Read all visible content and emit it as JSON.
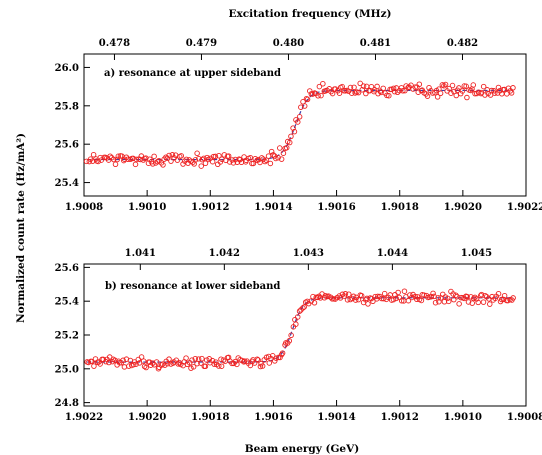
{
  "figure": {
    "top_axis_label": "Excitation frequency (MHz)",
    "y_axis_label": "Normalized count rate (Hz/mA²)",
    "bottom_axis_label": "Beam energy (GeV)"
  },
  "chart_data": [
    {
      "type": "scatter",
      "panel_label": "a) resonance at upper sideband",
      "xlabel": "",
      "x2label": "Excitation frequency (MHz)",
      "ylabel": "Normalized count rate (Hz/mA²)",
      "xlim": [
        1.9008,
        1.9022
      ],
      "x2lim": [
        0.47765,
        0.48273
      ],
      "ylim": [
        25.33,
        26.07
      ],
      "x_ticks": [
        1.9008,
        1.901,
        1.9012,
        1.9014,
        1.9016,
        1.9018,
        1.902,
        1.9022
      ],
      "x_tick_labels": [
        "1.9008",
        "1.9010",
        "1.9012",
        "1.9014",
        "1.9016",
        "1.9018",
        "1.9020",
        "1.9022"
      ],
      "x2_ticks": [
        0.478,
        0.479,
        0.48,
        0.481,
        0.482
      ],
      "x2_tick_labels": [
        "0.478",
        "0.479",
        "0.480",
        "0.481",
        "0.482"
      ],
      "y_ticks": [
        25.4,
        25.6,
        25.8,
        26.0
      ],
      "y_tick_labels": [
        "25.4",
        "25.6",
        "25.8",
        "26.0"
      ],
      "fit": {
        "low": 25.52,
        "high": 25.88,
        "center": 1.90147,
        "width": 2e-05
      },
      "data_range": [
        1.90081,
        1.90216
      ],
      "points_count": 260,
      "noise": 0.022,
      "series": [
        {
          "kind": "measured data",
          "marker": "open-circle",
          "color": "#ee2222"
        },
        {
          "kind": "fit",
          "style": "dashed",
          "color": "#3a3aa8"
        }
      ],
      "grid": false
    },
    {
      "type": "scatter",
      "panel_label": "b) resonance at lower sideband",
      "xlabel": "Beam energy (GeV)",
      "x2label": "",
      "ylabel": "Normalized count rate (Hz/mA²)",
      "xlim": [
        1.9022,
        1.9008
      ],
      "x2lim": [
        1.04033,
        1.04559
      ],
      "ylim": [
        24.78,
        25.62
      ],
      "x_ticks": [
        1.9022,
        1.902,
        1.9018,
        1.9016,
        1.9014,
        1.9012,
        1.901,
        1.9008
      ],
      "x_tick_labels": [
        "1.9022",
        "1.9020",
        "1.9018",
        "1.9016",
        "1.9014",
        "1.9012",
        "1.9010",
        "1.9008"
      ],
      "x2_ticks": [
        1.041,
        1.042,
        1.043,
        1.044,
        1.045
      ],
      "x2_tick_labels": [
        "1.041",
        "1.042",
        "1.043",
        "1.044",
        "1.045"
      ],
      "y_ticks": [
        24.8,
        25.0,
        25.2,
        25.4,
        25.6
      ],
      "y_tick_labels": [
        "24.8",
        "25.0",
        "25.2",
        "25.4",
        "25.6"
      ],
      "fit": {
        "low": 25.04,
        "high": 25.42,
        "center": 1.90154,
        "width": 1.8e-05
      },
      "data_range": [
        1.90219,
        1.90084
      ],
      "points_count": 260,
      "noise": 0.022,
      "series": [
        {
          "kind": "measured data",
          "marker": "open-circle",
          "color": "#ee2222"
        },
        {
          "kind": "fit",
          "style": "dashed",
          "color": "#3a3aa8"
        }
      ],
      "grid": false
    }
  ]
}
